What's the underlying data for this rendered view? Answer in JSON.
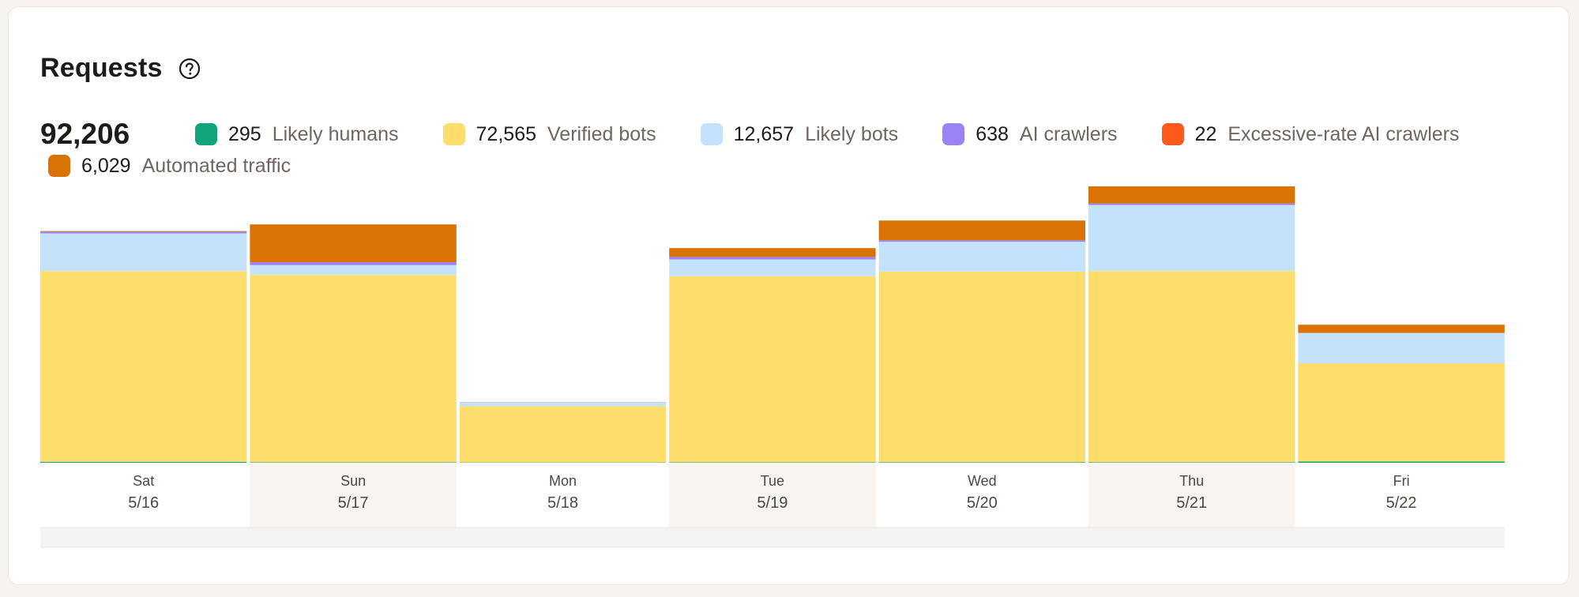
{
  "header": {
    "title": "Requests",
    "help_icon": "question-circle-icon",
    "total": "92,206"
  },
  "legend": [
    {
      "key": "likely_humans",
      "value": "295",
      "label": "Likely humans",
      "color": "#12a47a"
    },
    {
      "key": "verified_bots",
      "value": "72,565",
      "label": "Verified bots",
      "color": "#fdde6c"
    },
    {
      "key": "likely_bots",
      "value": "12,657",
      "label": "Likely bots",
      "color": "#c5e2fb"
    },
    {
      "key": "ai_crawlers",
      "value": "638",
      "label": "AI crawlers",
      "color": "#9a84f3"
    },
    {
      "key": "excessive_ai",
      "value": "22",
      "label": "Excessive-rate AI crawlers",
      "color": "#fb5a1c"
    },
    {
      "key": "automated",
      "value": "6,029",
      "label": "Automated traffic",
      "color": "#d97306"
    }
  ],
  "chart_data": {
    "type": "bar",
    "stacked": true,
    "categories": [
      {
        "day": "Sat",
        "date": "5/16"
      },
      {
        "day": "Sun",
        "date": "5/17"
      },
      {
        "day": "Mon",
        "date": "5/18"
      },
      {
        "day": "Tue",
        "date": "5/19"
      },
      {
        "day": "Wed",
        "date": "5/20"
      },
      {
        "day": "Thu",
        "date": "5/21"
      },
      {
        "day": "Fri",
        "date": "5/22"
      }
    ],
    "series": [
      {
        "name": "Likely humans",
        "color": "#12a47a",
        "values": [
          60,
          30,
          20,
          30,
          40,
          35,
          80
        ]
      },
      {
        "name": "Verified bots",
        "color": "#fdde6c",
        "values": [
          12080,
          11860,
          3560,
          11790,
          12070,
          12110,
          6220
        ]
      },
      {
        "name": "Likely bots",
        "color": "#c5e2fb",
        "values": [
          2390,
          630,
          230,
          1060,
          1890,
          4180,
          1920
        ]
      },
      {
        "name": "AI crawlers",
        "color": "#9a84f3",
        "values": [
          100,
          180,
          15,
          150,
          90,
          100,
          3
        ]
      },
      {
        "name": "Excessive-rate AI crawlers",
        "color": "#fb5a1c",
        "values": [
          5,
          5,
          2,
          5,
          3,
          2,
          0
        ]
      },
      {
        "name": "Automated traffic",
        "color": "#d97306",
        "values": [
          40,
          2390,
          5,
          560,
          1250,
          1080,
          520
        ]
      }
    ],
    "grid": false
  }
}
